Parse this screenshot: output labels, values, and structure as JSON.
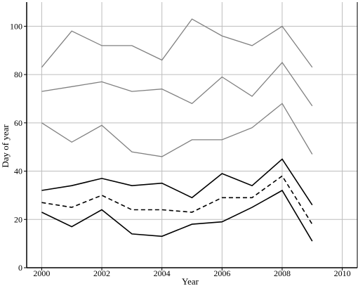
{
  "chart_data": {
    "type": "line",
    "xlabel": "Year",
    "ylabel": "Day of year",
    "xlim": [
      1999.5,
      2010.5
    ],
    "ylim": [
      0,
      110
    ],
    "xticks": [
      2000,
      2002,
      2004,
      2006,
      2008,
      2010
    ],
    "yticks": [
      0,
      20,
      40,
      60,
      80,
      100
    ],
    "grid": true,
    "x": [
      2000,
      2001,
      2002,
      2003,
      2004,
      2005,
      2006,
      2007,
      2008,
      2009
    ],
    "series": [
      {
        "values": [
          83,
          98,
          92,
          92,
          86,
          103,
          96,
          92,
          100,
          83
        ],
        "color": "#808080",
        "style": "solid"
      },
      {
        "values": [
          73,
          75,
          77,
          73,
          74,
          68,
          79,
          71,
          85,
          67
        ],
        "color": "#808080",
        "style": "solid"
      },
      {
        "values": [
          60,
          52,
          59,
          48,
          46,
          53,
          53,
          58,
          68,
          47
        ],
        "color": "#808080",
        "style": "solid"
      },
      {
        "values": [
          32,
          34,
          37,
          34,
          35,
          29,
          39,
          34,
          45,
          26
        ],
        "color": "#000000",
        "style": "solid"
      },
      {
        "values": [
          27,
          25,
          30,
          24,
          24,
          23,
          29,
          29,
          38,
          18
        ],
        "color": "#000000",
        "style": "dashed"
      },
      {
        "values": [
          23,
          17,
          24,
          14,
          13,
          18,
          19,
          25,
          32,
          11
        ],
        "color": "#000000",
        "style": "solid"
      }
    ]
  }
}
